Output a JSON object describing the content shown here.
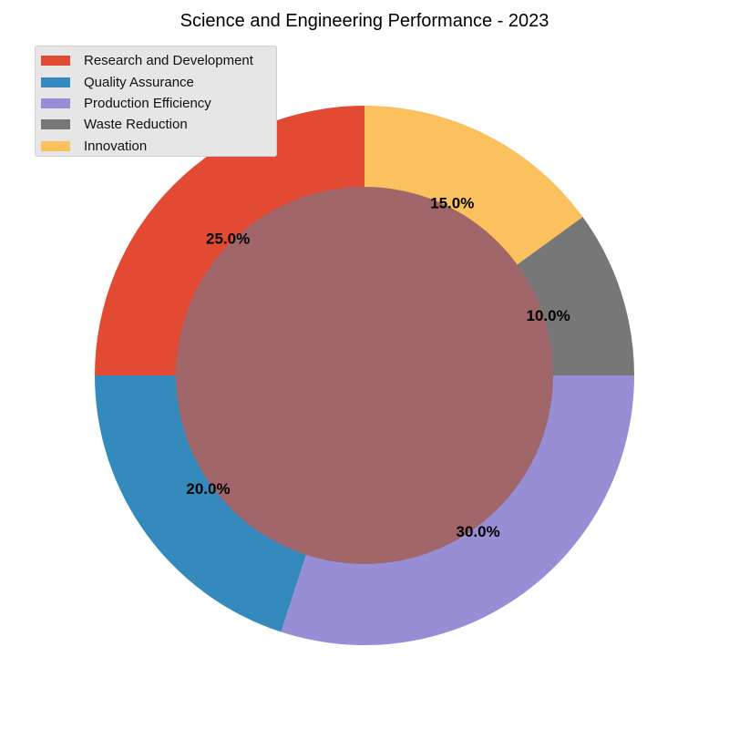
{
  "chart_data": {
    "type": "pie",
    "style": "donut",
    "title": "Science and Engineering Performance - 2023",
    "slices": [
      {
        "label": "Research and Development",
        "value": 25.0,
        "pct_label": "25.0%",
        "color": "#E24A33"
      },
      {
        "label": "Quality Assurance",
        "value": 20.0,
        "pct_label": "20.0%",
        "color": "#348ABD"
      },
      {
        "label": "Production Efficiency",
        "value": 30.0,
        "pct_label": "30.0%",
        "color": "#988ED5"
      },
      {
        "label": "Waste Reduction",
        "value": 10.0,
        "pct_label": "10.0%",
        "color": "#777777"
      },
      {
        "label": "Innovation",
        "value": 15.0,
        "pct_label": "15.0%",
        "color": "#FBC15E"
      }
    ],
    "center_color": "#A0666A",
    "start_angle_deg": 90,
    "direction": "counterclockwise",
    "legend_position": "top-left"
  }
}
